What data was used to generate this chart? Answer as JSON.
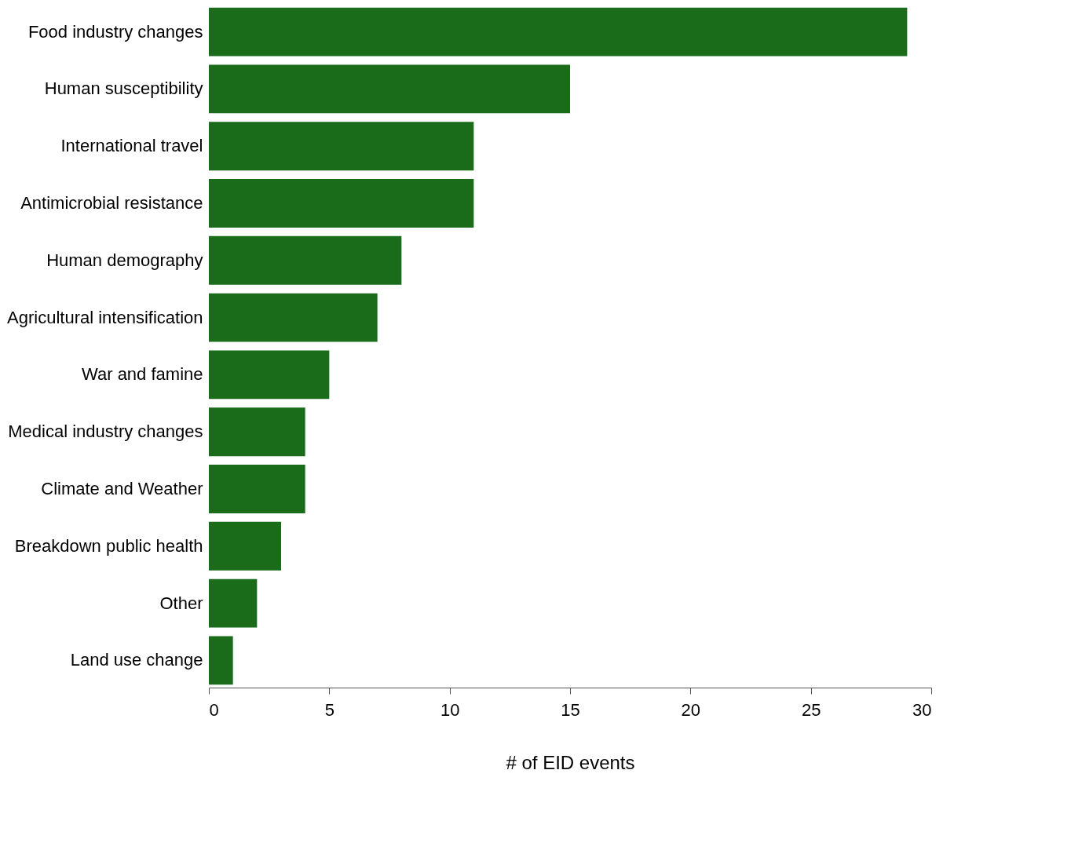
{
  "chart_data": {
    "type": "bar",
    "orientation": "horizontal",
    "xlabel": "# of EID events",
    "categories": [
      "Food industry changes",
      "Human susceptibility",
      "International travel",
      "Antimicrobial resistance",
      "Human demography",
      "Agricultural intensification",
      "War and famine",
      "Medical industry changes",
      "Climate and Weather",
      "Breakdown public health",
      "Other",
      "Land use change"
    ],
    "values": [
      29,
      15,
      11,
      11,
      8,
      7,
      5,
      4,
      4,
      3,
      2,
      1
    ],
    "color": "#1a6b1a",
    "xlim": [
      0,
      30
    ],
    "xticks": [
      0,
      5,
      10,
      15,
      20,
      25,
      30
    ],
    "grid": false
  }
}
